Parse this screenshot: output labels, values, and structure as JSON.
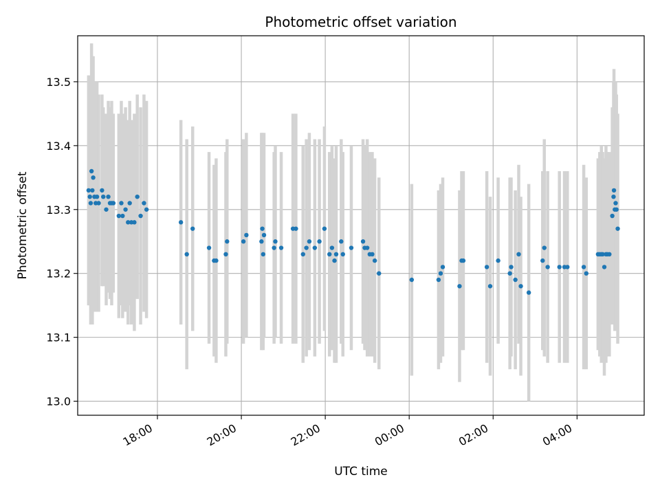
{
  "chart_data": {
    "type": "scatter",
    "title": "Photometric offset variation",
    "xlabel": "UTC time",
    "ylabel": "Photometric offset",
    "x_axis": {
      "unit": "hours since 00:00 of first date",
      "range_hours": [
        16.1,
        29.6
      ],
      "ticks": [
        {
          "value": 18,
          "label": "18:00"
        },
        {
          "value": 20,
          "label": "20:00"
        },
        {
          "value": 22,
          "label": "22:00"
        },
        {
          "value": 24,
          "label": "00:00"
        },
        {
          "value": 26,
          "label": "02:00"
        },
        {
          "value": 28,
          "label": "04:00"
        }
      ]
    },
    "ylim": [
      12.978,
      13.572
    ],
    "yticks": [
      13.0,
      13.1,
      13.2,
      13.3,
      13.4,
      13.5
    ],
    "ytick_labels": [
      "13.0",
      "13.1",
      "13.2",
      "13.3",
      "13.4",
      "13.5"
    ],
    "grid": true,
    "colors": {
      "points": "#1f77b4",
      "errorbars": "#d3d3d3",
      "grid": "#b0b0b0"
    },
    "points": [
      [
        16.36,
        13.33,
        0.18
      ],
      [
        16.39,
        13.32,
        0.17
      ],
      [
        16.41,
        13.31,
        0.19
      ],
      [
        16.43,
        13.36,
        0.2
      ],
      [
        16.45,
        13.33,
        0.21
      ],
      [
        16.47,
        13.35,
        0.19
      ],
      [
        16.5,
        13.32,
        0.18
      ],
      [
        16.53,
        13.31,
        0.17
      ],
      [
        16.56,
        13.32,
        0.18
      ],
      [
        16.6,
        13.31,
        0.17
      ],
      [
        16.68,
        13.33,
        0.15
      ],
      [
        16.71,
        13.32,
        0.14
      ],
      [
        16.78,
        13.3,
        0.15
      ],
      [
        16.83,
        13.32,
        0.15
      ],
      [
        16.87,
        13.31,
        0.15
      ],
      [
        16.91,
        13.31,
        0.16
      ],
      [
        16.95,
        13.31,
        0.14
      ],
      [
        17.08,
        13.29,
        0.16
      ],
      [
        17.14,
        13.31,
        0.16
      ],
      [
        17.17,
        13.29,
        0.16
      ],
      [
        17.24,
        13.3,
        0.16
      ],
      [
        17.3,
        13.28,
        0.16
      ],
      [
        17.34,
        13.31,
        0.16
      ],
      [
        17.38,
        13.28,
        0.16
      ],
      [
        17.45,
        13.28,
        0.17
      ],
      [
        17.52,
        13.32,
        0.16
      ],
      [
        17.6,
        13.29,
        0.17
      ],
      [
        17.68,
        13.31,
        0.17
      ],
      [
        17.74,
        13.3,
        0.17
      ],
      [
        18.56,
        13.28,
        0.16
      ],
      [
        18.7,
        13.23,
        0.18
      ],
      [
        18.84,
        13.27,
        0.16
      ],
      [
        19.23,
        13.24,
        0.15
      ],
      [
        19.35,
        13.22,
        0.15
      ],
      [
        19.4,
        13.22,
        0.16
      ],
      [
        19.63,
        13.23,
        0.16
      ],
      [
        19.66,
        13.25,
        0.16
      ],
      [
        20.05,
        13.25,
        0.16
      ],
      [
        20.12,
        13.26,
        0.16
      ],
      [
        20.48,
        13.25,
        0.17
      ],
      [
        20.5,
        13.27,
        0.15
      ],
      [
        20.52,
        13.23,
        0.15
      ],
      [
        20.54,
        13.26,
        0.16
      ],
      [
        20.78,
        13.24,
        0.15
      ],
      [
        20.81,
        13.25,
        0.15
      ],
      [
        20.95,
        13.24,
        0.15
      ],
      [
        21.23,
        13.27,
        0.18
      ],
      [
        21.3,
        13.27,
        0.18
      ],
      [
        21.47,
        13.23,
        0.17
      ],
      [
        21.55,
        13.24,
        0.17
      ],
      [
        21.62,
        13.25,
        0.17
      ],
      [
        21.75,
        13.24,
        0.17
      ],
      [
        21.86,
        13.25,
        0.16
      ],
      [
        21.98,
        13.27,
        0.16
      ],
      [
        22.1,
        13.23,
        0.16
      ],
      [
        22.16,
        13.24,
        0.16
      ],
      [
        22.22,
        13.22,
        0.16
      ],
      [
        22.26,
        13.23,
        0.17
      ],
      [
        22.38,
        13.25,
        0.16
      ],
      [
        22.42,
        13.23,
        0.16
      ],
      [
        22.62,
        13.24,
        0.16
      ],
      [
        22.9,
        13.25,
        0.16
      ],
      [
        22.94,
        13.24,
        0.16
      ],
      [
        23.0,
        13.24,
        0.17
      ],
      [
        23.06,
        13.23,
        0.16
      ],
      [
        23.12,
        13.23,
        0.16
      ],
      [
        23.18,
        13.22,
        0.16
      ],
      [
        23.28,
        13.2,
        0.15
      ],
      [
        24.06,
        13.19,
        0.15
      ],
      [
        24.7,
        13.19,
        0.14
      ],
      [
        24.75,
        13.2,
        0.14
      ],
      [
        24.8,
        13.21,
        0.14
      ],
      [
        25.2,
        13.18,
        0.15
      ],
      [
        25.25,
        13.22,
        0.14
      ],
      [
        25.29,
        13.22,
        0.14
      ],
      [
        25.85,
        13.21,
        0.15
      ],
      [
        25.93,
        13.18,
        0.14
      ],
      [
        26.12,
        13.22,
        0.13
      ],
      [
        26.4,
        13.2,
        0.15
      ],
      [
        26.43,
        13.21,
        0.14
      ],
      [
        26.53,
        13.19,
        0.14
      ],
      [
        26.61,
        13.23,
        0.14
      ],
      [
        26.66,
        13.18,
        0.14
      ],
      [
        26.85,
        13.17,
        0.17
      ],
      [
        27.18,
        13.22,
        0.14
      ],
      [
        27.22,
        13.24,
        0.17
      ],
      [
        27.3,
        13.21,
        0.15
      ],
      [
        27.58,
        13.21,
        0.15
      ],
      [
        27.7,
        13.21,
        0.15
      ],
      [
        27.77,
        13.21,
        0.15
      ],
      [
        28.16,
        13.21,
        0.16
      ],
      [
        28.22,
        13.2,
        0.15
      ],
      [
        28.5,
        13.23,
        0.15
      ],
      [
        28.54,
        13.23,
        0.16
      ],
      [
        28.58,
        13.23,
        0.17
      ],
      [
        28.61,
        13.23,
        0.16
      ],
      [
        28.65,
        13.21,
        0.17
      ],
      [
        28.69,
        13.23,
        0.17
      ],
      [
        28.72,
        13.23,
        0.16
      ],
      [
        28.77,
        13.23,
        0.16
      ],
      [
        28.84,
        13.29,
        0.17
      ],
      [
        28.87,
        13.32,
        0.18
      ],
      [
        28.88,
        13.33,
        0.19
      ],
      [
        28.9,
        13.3,
        0.19
      ],
      [
        28.92,
        13.31,
        0.19
      ],
      [
        28.94,
        13.3,
        0.18
      ],
      [
        28.97,
        13.27,
        0.18
      ]
    ]
  }
}
